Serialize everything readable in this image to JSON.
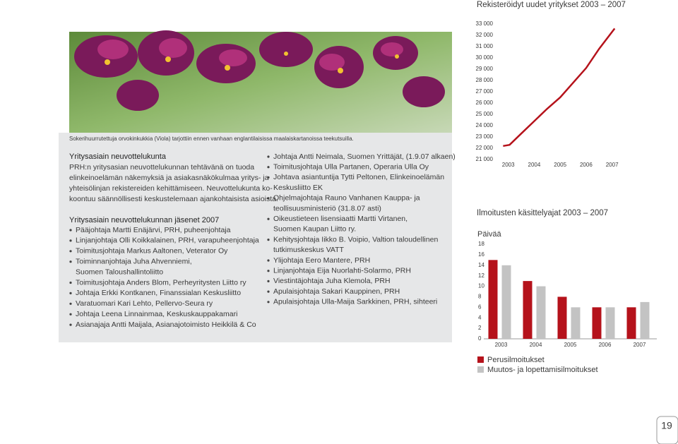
{
  "caption": "Sokerihuurrutettuja orvokinkukkia (Viola) tarjottiin ennen vanhaan englantilaisissa maalaiskartanoissa teekutsuilla.",
  "committee": {
    "heading": "Yritysasiain neuvottelukunta",
    "paragraph": [
      "PRH:n yritysasian neuvottelukunnan tehtävänä on tuoda",
      "elinkeinoelämän näkemyksiä ja asiakasnäkökulmaa yritys- ja",
      "yhteisölinjan rekistereiden kehittämiseen. Neuvottelukunta ko-",
      "koontuu säännöllisesti keskustelemaan ajankohtaisista asioista."
    ]
  },
  "members": {
    "heading": "Yritysasiain neuvottelukunnan jäsenet 2007",
    "left": [
      [
        "Pääjohtaja Martti Enäjärvi, PRH, puheenjohtaja"
      ],
      [
        "Linjanjohtaja Olli Koikkalainen, PRH, varapuheenjohtaja"
      ],
      [
        "Toimitusjohtaja Markus Aaltonen, Veterator Oy"
      ],
      [
        "Toiminnanjohtaja Juha Ahvenniemi,",
        "Suomen Taloushallintoliitto"
      ],
      [
        "Toimitusjohtaja Anders Blom, Perheyritysten Liitto ry"
      ],
      [
        "Johtaja Erkki Kontkanen, Finanssialan Keskusliitto"
      ],
      [
        "Varatuomari Kari Lehto, Pellervo-Seura ry"
      ],
      [
        "Johtaja Leena Linnainmaa, Keskuskauppakamari"
      ],
      [
        "Asianajaja Antti Maijala, Asianajotoimisto Heikkilä & Co"
      ]
    ],
    "right": [
      [
        "Johtaja Antti Neimala, Suomen Yrittäjät, (1.9.07 alkaen)"
      ],
      [
        "Toimitusjohtaja Ulla Partanen, Operaria Ulla Oy"
      ],
      [
        "Johtava asiantuntija Tytti Peltonen, Elinkeinoelämän",
        "Keskusliitto EK"
      ],
      [
        "Ohjelmajohtaja Rauno Vanhanen Kauppa- ja",
        "teollisuusministeriö (31.8.07 asti)"
      ],
      [
        "Oikeustieteen lisensiaatti Martti Virtanen,",
        "Suomen Kaupan Liitto ry."
      ],
      [
        "Kehitysjohtaja Iikko B. Voipio, Valtion taloudellinen",
        "tutkimuskeskus VATT"
      ],
      [
        "Ylijohtaja Eero Mantere, PRH"
      ],
      [
        "Linjanjohtaja Eija Nuorlahti-Solarmo, PRH"
      ],
      [
        "Viestintäjohtaja Juha Klemola, PRH"
      ],
      [
        "Apulaisjohtaja Sakari Kauppinen, PRH"
      ],
      [
        "Apulaisjohtaja Ulla-Maija Sarkkinen, PRH, sihteeri"
      ]
    ]
  },
  "page_number": "19",
  "chart_data": [
    {
      "type": "line",
      "title": "Rekisteröidyt uudet yritykset 2003 – 2007",
      "series": [
        {
          "color": "#b5121b",
          "x": [
            2002.8,
            2003.05,
            2003.5,
            2004,
            2004.5,
            2005,
            2005.5,
            2006,
            2006.5,
            2007.1
          ],
          "values": [
            22200,
            22300,
            23300,
            24400,
            25500,
            26500,
            27800,
            29100,
            30800,
            32600
          ]
        }
      ],
      "xlim": [
        2002.6,
        2007.5
      ],
      "xticks": [
        2003,
        2004,
        2005,
        2006,
        2007
      ],
      "ylim": [
        21000,
        33000
      ],
      "yticks": [
        {
          "value": 21000,
          "label": "21 000"
        },
        {
          "value": 22000,
          "label": "22 000"
        },
        {
          "value": 23000,
          "label": "23 000"
        },
        {
          "value": 24000,
          "label": "24 000"
        },
        {
          "value": 25000,
          "label": "25 000"
        },
        {
          "value": 26000,
          "label": "26 000"
        },
        {
          "value": 27000,
          "label": "27 000"
        },
        {
          "value": 28000,
          "label": "28 000"
        },
        {
          "value": 29000,
          "label": "29 000"
        },
        {
          "value": 30000,
          "label": "30 000"
        },
        {
          "value": 31000,
          "label": "31 000"
        },
        {
          "value": 32000,
          "label": "32 000"
        },
        {
          "value": 33000,
          "label": "33 000"
        }
      ]
    },
    {
      "type": "bar",
      "title": "Ilmoitusten käsittelyajat 2003 – 2007",
      "ylabel": "Päivää",
      "categories": [
        "2003",
        "2004",
        "2005",
        "2006",
        "2007"
      ],
      "series": [
        {
          "name": "Perusilmoitukset",
          "color": "#b5121b",
          "values": [
            15,
            11,
            8,
            6,
            6
          ]
        },
        {
          "name": "Muutos- ja lopettamisilmoitukset",
          "color": "#c3c3c3",
          "values": [
            14,
            10,
            6,
            6,
            7
          ]
        }
      ],
      "ylim": [
        0,
        18
      ],
      "yticks": [
        0,
        2,
        4,
        6,
        8,
        10,
        12,
        14,
        16,
        18
      ]
    }
  ]
}
